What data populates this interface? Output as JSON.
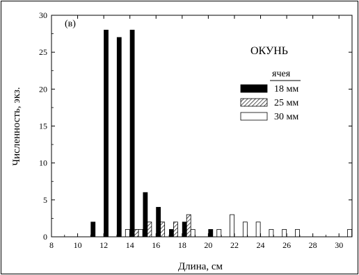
{
  "chart_data": {
    "type": "bar",
    "panel_label": "(в)",
    "species_label": "ОКУНЬ",
    "xlabel": "Длина, см",
    "ylabel": "Численность, экз.",
    "xlim": [
      8,
      31
    ],
    "ylim": [
      0,
      30
    ],
    "x_ticks": [
      8,
      10,
      12,
      14,
      16,
      18,
      20,
      22,
      24,
      26,
      28,
      30
    ],
    "y_ticks": [
      0,
      5,
      10,
      15,
      20,
      25,
      30
    ],
    "grid": false,
    "legend": {
      "title": "ячея",
      "placement": "right"
    },
    "series": [
      {
        "name": "18 мм",
        "fill": "solid",
        "color": "#000000",
        "x": [
          11.5,
          12.5,
          13.5,
          14.5,
          15.5,
          16.5,
          17.5,
          18.5,
          20.5
        ],
        "values": [
          2,
          28,
          27,
          28,
          6,
          4,
          1,
          2,
          1
        ]
      },
      {
        "name": "25 мм",
        "fill": "hatch",
        "color": "#000000",
        "x": [
          14.5,
          15.5,
          16.5,
          17.5,
          18.5
        ],
        "values": [
          1,
          2,
          2,
          2,
          3
        ]
      },
      {
        "name": "30 мм",
        "fill": "open",
        "color": "#000000",
        "x": [
          13.5,
          14.5,
          18.5,
          20.5,
          21.5,
          22.5,
          23.5,
          24.5,
          25.5,
          26.5,
          30.5
        ],
        "values": [
          1,
          1,
          1,
          1,
          3,
          2,
          2,
          1,
          1,
          1,
          1
        ]
      }
    ]
  }
}
